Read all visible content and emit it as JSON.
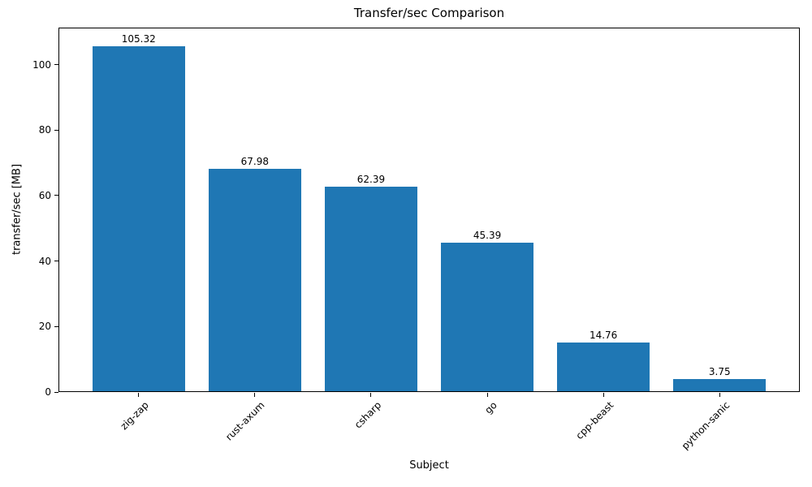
{
  "chart_data": {
    "type": "bar",
    "title": "Transfer/sec Comparison",
    "xlabel": "Subject",
    "ylabel": "transfer/sec [MB]",
    "categories": [
      "zig-zap",
      "rust-axum",
      "csharp",
      "go",
      "cpp-beast",
      "python-sanic"
    ],
    "values": [
      105.32,
      67.98,
      62.39,
      45.39,
      14.76,
      3.75
    ],
    "value_labels": [
      "105.32",
      "67.98",
      "62.39",
      "45.39",
      "14.76",
      "3.75"
    ],
    "yticks": [
      0,
      20,
      40,
      60,
      80,
      100
    ],
    "ylim": [
      0,
      111.3
    ],
    "xlim": [
      -0.69,
      5.69
    ],
    "bar_width_units": 0.8,
    "bar_color": "#1f77b4",
    "grid": false,
    "legend": "none",
    "x_tick_label_rotation_deg": 45
  }
}
